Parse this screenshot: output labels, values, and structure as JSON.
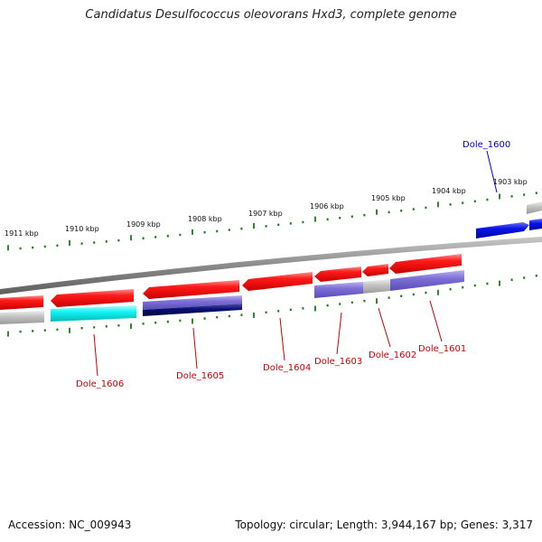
{
  "title": "Candidatus Desulfococcus oleovorans Hxd3, complete genome",
  "footer": {
    "accession": "Accession: NC_009943",
    "summary": "Topology: circular; Length: 3,944,167 bp; Genes: 3,317"
  },
  "colors": {
    "red": "#ff2020",
    "blue": "#0a12e8",
    "cyan": "#12f4f4",
    "gray": "#c4c4c4",
    "lavender": "#7d6fd6",
    "navy": "#0a0f70",
    "backbone": "#8a8a8a",
    "tick": "#1a7a1a",
    "label_red": "#cc0000",
    "label_blue": "#0000cc"
  },
  "kbp_labels": [
    "1911 kbp",
    "1910 kbp",
    "1909 kbp",
    "1908 kbp",
    "1907 kbp",
    "1906 kbp",
    "1905 kbp",
    "1904 kbp",
    "1903 kbp"
  ],
  "gene_labels": {
    "dole_1600": "Dole_1600",
    "dole_1601": "Dole_1601",
    "dole_1602": "Dole_1602",
    "dole_1603": "Dole_1603",
    "dole_1604": "Dole_1604",
    "dole_1605": "Dole_1605",
    "dole_1606": "Dole_1606"
  }
}
